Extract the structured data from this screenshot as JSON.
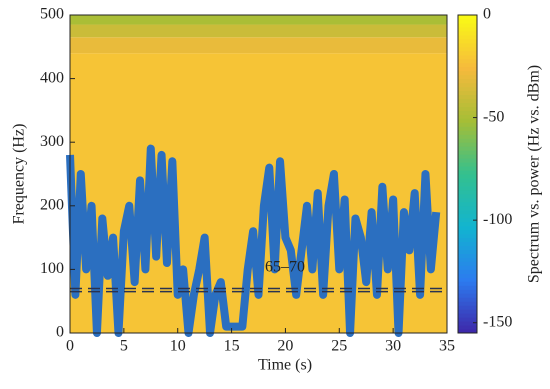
{
  "chart_data": {
    "type": "spectrogram",
    "xlabel": "Time (s)",
    "ylabel": "Frequency (Hz)",
    "xlim": [
      0,
      35
    ],
    "xticks": [
      0,
      5,
      10,
      15,
      20,
      25,
      30,
      35
    ],
    "ylim": [
      0,
      500
    ],
    "yticks": [
      0,
      100,
      200,
      300,
      400,
      500
    ],
    "y_bins": [
      0,
      440,
      465,
      485,
      500
    ],
    "power": [
      -22,
      -30,
      -40,
      -50
    ],
    "colormap": [
      "#3e26a8",
      "#2c7bef",
      "#12b4d0",
      "#33c08f",
      "#a5be36",
      "#f6ba3c",
      "#f9fb15"
    ],
    "colorbar": {
      "label": "Spectrum vs. power (Hz vs. dBm)",
      "lim": [
        -155,
        0
      ],
      "ticks": [
        0,
        -50,
        -100,
        -150
      ]
    },
    "series": [
      {
        "color": "#2b6fc0",
        "x": [
          0,
          0.5,
          1,
          1.5,
          2,
          2.5,
          3,
          3.5,
          4,
          4.5,
          5,
          5.5,
          6,
          6.5,
          7,
          7.5,
          8,
          8.5,
          9,
          9.5,
          10,
          10.5,
          11,
          11.5,
          12,
          12.5,
          13,
          13.5,
          14,
          14.5,
          15,
          15.5,
          16,
          16.5,
          17,
          17.5,
          18,
          18.5,
          19,
          19.5,
          20,
          20.5,
          21,
          21.5,
          22,
          22.5,
          23,
          23.5,
          24,
          24.5,
          25,
          25.5,
          26,
          26.5,
          27,
          27.5,
          28,
          28.5,
          29,
          29.5,
          30,
          30.5,
          31,
          31.5,
          32,
          32.5,
          33,
          33.5,
          34
        ],
        "values": [
          280,
          60,
          250,
          100,
          200,
          0,
          180,
          90,
          150,
          0,
          160,
          200,
          80,
          240,
          100,
          290,
          120,
          280,
          110,
          270,
          60,
          100,
          0,
          60,
          100,
          150,
          0,
          60,
          80,
          10,
          10,
          10,
          10,
          100,
          160,
          60,
          200,
          260,
          100,
          270,
          150,
          130,
          60,
          130,
          200,
          100,
          220,
          60,
          200,
          250,
          100,
          210,
          0,
          180,
          150,
          80,
          190,
          60,
          230,
          100,
          210,
          0,
          190,
          130,
          220,
          60,
          250,
          100,
          190
        ]
      }
    ],
    "reference_lines": [
      65,
      70
    ],
    "annotation": "65–70"
  }
}
